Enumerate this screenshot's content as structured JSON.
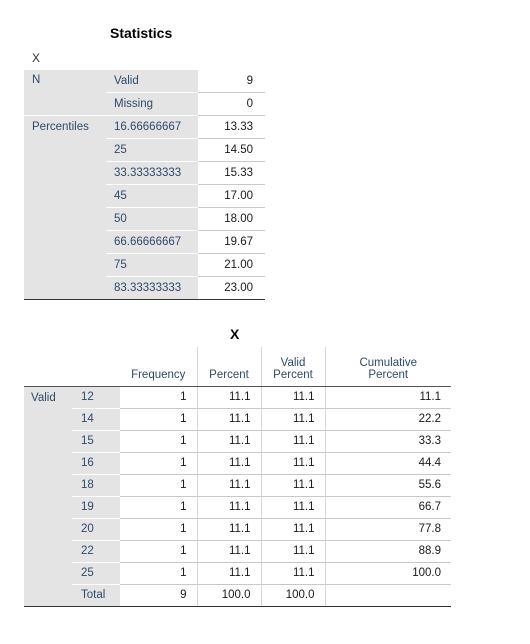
{
  "statistics": {
    "title": "Statistics",
    "variable": "X",
    "n_label": "N",
    "valid_label": "Valid",
    "valid_value": "9",
    "missing_label": "Missing",
    "missing_value": "0",
    "percentiles_label": "Percentiles",
    "percentiles": [
      {
        "p": "16.66666667",
        "v": "13.33"
      },
      {
        "p": "25",
        "v": "14.50"
      },
      {
        "p": "33.33333333",
        "v": "15.33"
      },
      {
        "p": "45",
        "v": "17.00"
      },
      {
        "p": "50",
        "v": "18.00"
      },
      {
        "p": "66.66666667",
        "v": "19.67"
      },
      {
        "p": "75",
        "v": "21.00"
      },
      {
        "p": "83.33333333",
        "v": "23.00"
      }
    ]
  },
  "frequency": {
    "title": "X",
    "headers": {
      "frequency": "Frequency",
      "percent": "Percent",
      "valid_percent": "Valid Percent",
      "cumulative_line1": "Cumulative",
      "cumulative_line2": "Percent"
    },
    "valid_label": "Valid",
    "rows": [
      {
        "x": "12",
        "f": "1",
        "p": "11.1",
        "vp": "11.1",
        "cp": "11.1"
      },
      {
        "x": "14",
        "f": "1",
        "p": "11.1",
        "vp": "11.1",
        "cp": "22.2"
      },
      {
        "x": "15",
        "f": "1",
        "p": "11.1",
        "vp": "11.1",
        "cp": "33.3"
      },
      {
        "x": "16",
        "f": "1",
        "p": "11.1",
        "vp": "11.1",
        "cp": "44.4"
      },
      {
        "x": "18",
        "f": "1",
        "p": "11.1",
        "vp": "11.1",
        "cp": "55.6"
      },
      {
        "x": "19",
        "f": "1",
        "p": "11.1",
        "vp": "11.1",
        "cp": "66.7"
      },
      {
        "x": "20",
        "f": "1",
        "p": "11.1",
        "vp": "11.1",
        "cp": "77.8"
      },
      {
        "x": "22",
        "f": "1",
        "p": "11.1",
        "vp": "11.1",
        "cp": "88.9"
      },
      {
        "x": "25",
        "f": "1",
        "p": "11.1",
        "vp": "11.1",
        "cp": "100.0"
      }
    ],
    "total": {
      "label": "Total",
      "f": "9",
      "p": "100.0",
      "vp": "100.0",
      "cp": ""
    }
  }
}
